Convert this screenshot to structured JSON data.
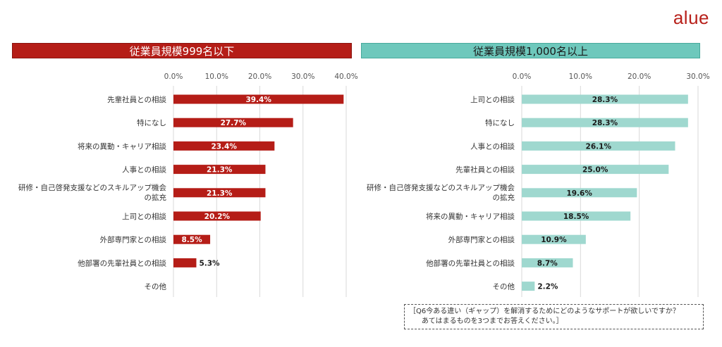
{
  "brand": {
    "logo_text": "alue",
    "color": "#b8211b"
  },
  "chart_data": [
    {
      "type": "bar",
      "orientation": "horizontal",
      "title": "従業員規模999名以下",
      "color": "#b51d17",
      "value_label_color": "#ffffff",
      "xlim": [
        0,
        40
      ],
      "ticks": [
        "0.0%",
        "10.0%",
        "20.0%",
        "30.0%",
        "40.0%"
      ],
      "tick_values": [
        0,
        10,
        20,
        30,
        40
      ],
      "grid": true,
      "categories": [
        [
          "先輩社員との相談"
        ],
        [
          "特になし"
        ],
        [
          "将来の異動・キャリア相談"
        ],
        [
          "人事との相談"
        ],
        [
          "研修・自己啓発支援などのスキルアップ機会",
          "の拡充"
        ],
        [
          "上司との相談"
        ],
        [
          "外部専門家との相談"
        ],
        [
          "他部署の先輩社員との相談"
        ],
        [
          "その他"
        ]
      ],
      "values": [
        39.4,
        27.7,
        23.4,
        21.3,
        21.3,
        20.2,
        8.5,
        5.3,
        0
      ],
      "value_labels": [
        "39.4%",
        "27.7%",
        "23.4%",
        "21.3%",
        "21.3%",
        "20.2%",
        "8.5%",
        "5.3%",
        ""
      ]
    },
    {
      "type": "bar",
      "orientation": "horizontal",
      "title": "従業員規模1,000名以上",
      "color": "#9fd8cf",
      "value_label_color": "#1a1a1a",
      "xlim": [
        0,
        30
      ],
      "ticks": [
        "0.0%",
        "10.0%",
        "20.0%",
        "30.0%"
      ],
      "tick_values": [
        0,
        10,
        20,
        30
      ],
      "grid": true,
      "categories": [
        [
          "上司との相談"
        ],
        [
          "特になし"
        ],
        [
          "人事との相談"
        ],
        [
          "先輩社員との相談"
        ],
        [
          "研修・自己啓発支援などのスキルアップ機会",
          "の拡充"
        ],
        [
          "将来の異動・キャリア相談"
        ],
        [
          "外部専門家との相談"
        ],
        [
          "他部署の先輩社員との相談"
        ],
        [
          "その他"
        ]
      ],
      "values": [
        28.3,
        28.3,
        26.1,
        25.0,
        19.6,
        18.5,
        10.9,
        8.7,
        2.2
      ],
      "value_labels": [
        "28.3%",
        "28.3%",
        "26.1%",
        "25.0%",
        "19.6%",
        "18.5%",
        "10.9%",
        "8.7%",
        "2.2%"
      ]
    }
  ],
  "note": {
    "line1": "［Q6今ある違い（ギャップ）を解消するためにどのようなサポートが欲しいですか？",
    "line2": "あてはまるものを3つまでお答えください。］"
  }
}
